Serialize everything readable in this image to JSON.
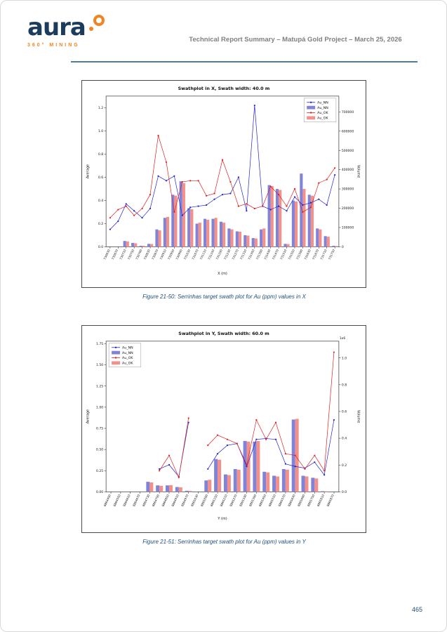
{
  "page": {
    "header": {
      "logo_text": "aura",
      "logo_subtext": "360° MINING",
      "title": "Technical Report Summary – Matupá Gold Project – March 25, 2026"
    },
    "captions": {
      "figure_1": "Figure 21-50: Serrinhas target swath plot for Au (ppm) values in X",
      "figure_2": "Figure 21-51: Serrinhas target swath plot for Au (ppm) values in Y"
    },
    "page_number": "465"
  },
  "colors": {
    "navy": "#1c3c5e",
    "orange": "#f58220",
    "divider_blue": "#4a7c9b",
    "caption_blue": "#1f4e79",
    "header_gray": "#7f7f7f",
    "line_blue": "#2222cc",
    "line_red": "#e02020",
    "bar_blue": "#8084d8",
    "bar_pink": "#f48f8a"
  },
  "chart_data": [
    {
      "type": "bar+line",
      "title": "Swathplot in X, Swath width: 40.0 m",
      "xlabel": "X (m)",
      "ylabel_left": "Average",
      "ylabel_right": "Volume",
      "legend_position": "upper right",
      "categories": [
        730630,
        730670,
        730710,
        730750,
        730790,
        730830,
        730870,
        730910,
        730950,
        730990,
        731030,
        731070,
        731110,
        731150,
        731190,
        731230,
        731270,
        731310,
        731350,
        731390,
        731430,
        731470,
        731510,
        731550,
        731590,
        731630,
        731670,
        731710,
        731750
      ],
      "lines": [
        {
          "name": "Au_NN",
          "color_key": "line_blue",
          "values": [
            0.15,
            0.22,
            0.37,
            0.31,
            0.25,
            0.33,
            0.61,
            0.57,
            0.61,
            0.27,
            0.34,
            0.35,
            0.36,
            0.41,
            0.45,
            0.46,
            0.6,
            0.31,
            1.22,
            0.35,
            0.32,
            0.35,
            0.31,
            0.43,
            0.36,
            0.38,
            0.41,
            0.36,
            0.62
          ]
        },
        {
          "name": "Au_OK",
          "color_key": "line_red",
          "values": [
            0.25,
            0.32,
            0.35,
            0.27,
            0.33,
            0.45,
            0.96,
            0.73,
            0.3,
            0.56,
            0.57,
            0.57,
            0.44,
            0.46,
            0.75,
            0.56,
            0.35,
            0.37,
            0.33,
            0.35,
            0.52,
            0.45,
            0.35,
            0.5,
            0.3,
            0.34,
            0.55,
            0.58,
            0.68
          ]
        }
      ],
      "bars": [
        {
          "name": "Au_NN",
          "color_key": "bar_blue",
          "values": [
            0,
            0,
            30000,
            20000,
            5000,
            15000,
            90000,
            150000,
            270000,
            340000,
            200000,
            120000,
            145000,
            145000,
            130000,
            95000,
            80000,
            60000,
            45000,
            90000,
            320000,
            300000,
            15000,
            240000,
            380000,
            270000,
            95000,
            55000,
            5000
          ]
        },
        {
          "name": "Au_OK",
          "color_key": "bar_pink",
          "values": [
            0,
            0,
            28000,
            18000,
            5000,
            14000,
            85000,
            155000,
            265000,
            330000,
            195000,
            125000,
            140000,
            150000,
            125000,
            90000,
            78000,
            58000,
            43000,
            95000,
            315000,
            295000,
            14000,
            235000,
            300000,
            265000,
            90000,
            52000,
            4000
          ]
        }
      ],
      "left_axis": {
        "min": 0,
        "max": 1.3,
        "ticks": [
          0,
          0.2,
          0.4,
          0.6,
          0.8,
          1.0,
          1.2
        ],
        "labels": [
          "0.0",
          "0.2",
          "0.4",
          "0.6",
          "0.8",
          "1.0",
          "1.2"
        ]
      },
      "right_axis": {
        "min": 0,
        "max": 782000,
        "ticks": [
          0,
          100000,
          200000,
          300000,
          400000,
          500000,
          600000,
          700000
        ],
        "labels": [
          "0",
          "100000",
          "200000",
          "300000",
          "400000",
          "500000",
          "600000",
          "700000"
        ],
        "offset": ""
      }
    },
    {
      "type": "bar+line",
      "title": "Swathplot in Y, Swath width: 60.0 m",
      "xlabel": "Y (m)",
      "ylabel_left": "Average",
      "ylabel_right": "Volume",
      "legend_position": "upper left",
      "categories": [
        8864490,
        8864550,
        8864610,
        8864670,
        8864730,
        8864790,
        8864850,
        8864910,
        8864970,
        8865030,
        8865090,
        8865150,
        8865210,
        8865270,
        8865330,
        8865390,
        8865450,
        8865510,
        8865570,
        8865630,
        8865690,
        8865750,
        8865810,
        8865870
      ],
      "lines": [
        {
          "name": "Au_NN",
          "color_key": "line_blue",
          "values": [
            null,
            null,
            null,
            null,
            null,
            0.27,
            0.32,
            0.18,
            0.82,
            null,
            0.27,
            0.45,
            0.55,
            0.57,
            0.3,
            0.62,
            0.63,
            0.62,
            0.33,
            0.3,
            0.28,
            0.35,
            0.2,
            0.85
          ]
        },
        {
          "name": "Au_OK",
          "color_key": "line_red",
          "values": [
            null,
            null,
            null,
            null,
            null,
            0.25,
            0.43,
            0.17,
            0.87,
            null,
            0.55,
            0.67,
            0.62,
            0.57,
            0.32,
            0.85,
            0.62,
            0.82,
            0.45,
            0.43,
            0.27,
            0.43,
            0.25,
            1.65
          ]
        }
      ],
      "bars": [
        {
          "name": "Au_NN",
          "color_key": "bar_blue",
          "values": [
            0,
            0,
            0,
            0,
            75000,
            48000,
            48000,
            36000,
            8000,
            0,
            85000,
            245000,
            130000,
            170000,
            380000,
            375000,
            150000,
            120000,
            170000,
            540000,
            120000,
            105000,
            5000,
            0
          ]
        },
        {
          "name": "Au_OK",
          "color_key": "bar_pink",
          "values": [
            0,
            0,
            0,
            0,
            70000,
            45000,
            50000,
            34000,
            7000,
            0,
            90000,
            240000,
            125000,
            165000,
            375000,
            380000,
            145000,
            115000,
            165000,
            545000,
            115000,
            100000,
            4000,
            0
          ]
        }
      ],
      "left_axis": {
        "min": 0,
        "max": 1.78,
        "ticks": [
          0,
          0.25,
          0.5,
          0.75,
          1.0,
          1.25,
          1.5,
          1.75
        ],
        "labels": [
          "0.00",
          "0.25",
          "0.50",
          "0.75",
          "1.00",
          "1.25",
          "1.50",
          "1.75"
        ]
      },
      "right_axis": {
        "min": 0,
        "max": 1125000,
        "ticks": [
          0,
          200000,
          400000,
          600000,
          800000,
          1000000
        ],
        "labels": [
          "0.0",
          "0.2",
          "0.4",
          "0.6",
          "0.8",
          "1.0"
        ],
        "offset": "1e6"
      }
    }
  ]
}
